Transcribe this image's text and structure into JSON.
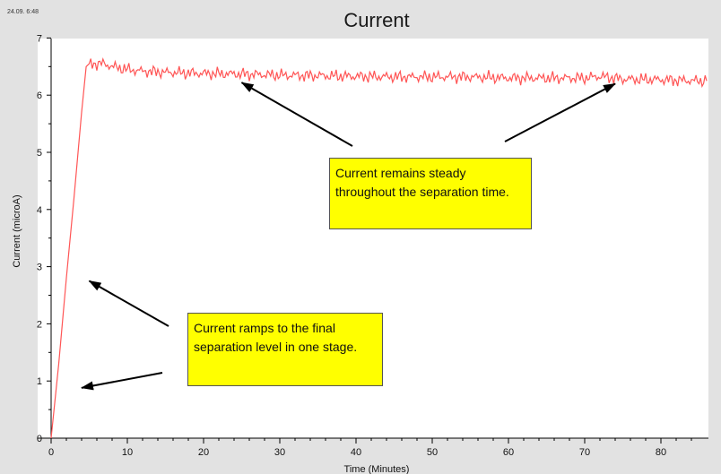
{
  "chart_data": {
    "type": "line",
    "title": "Current",
    "timestamp": "24.09. 6:48",
    "xlabel": "Time (Minutes)",
    "ylabel": "Current (microA)",
    "xlim": [
      0,
      86
    ],
    "ylim": [
      0,
      7
    ],
    "xticks": [
      0,
      10,
      20,
      30,
      40,
      50,
      60,
      70,
      80
    ],
    "yticks": [
      0,
      1,
      2,
      3,
      4,
      5,
      6,
      7
    ],
    "grid": false,
    "series": [
      {
        "color": "#ff5555",
        "x": [
          0,
          1,
          2,
          3,
          4,
          4.6,
          5,
          6,
          7,
          8,
          10,
          12,
          15,
          20,
          25,
          30,
          35,
          40,
          45,
          50,
          55,
          60,
          65,
          70,
          72,
          75,
          80,
          85,
          86
        ],
        "y": [
          0,
          1.3,
          2.8,
          4.2,
          5.7,
          6.5,
          6.55,
          6.55,
          6.55,
          6.5,
          6.45,
          6.42,
          6.4,
          6.38,
          6.37,
          6.35,
          6.34,
          6.33,
          6.32,
          6.32,
          6.32,
          6.3,
          6.3,
          6.3,
          6.33,
          6.28,
          6.27,
          6.25,
          6.25
        ]
      }
    ],
    "annotations": [
      {
        "text": "Current remains steady throughout the separation time."
      },
      {
        "text": "Current ramps to the final separation level in one stage."
      }
    ]
  }
}
